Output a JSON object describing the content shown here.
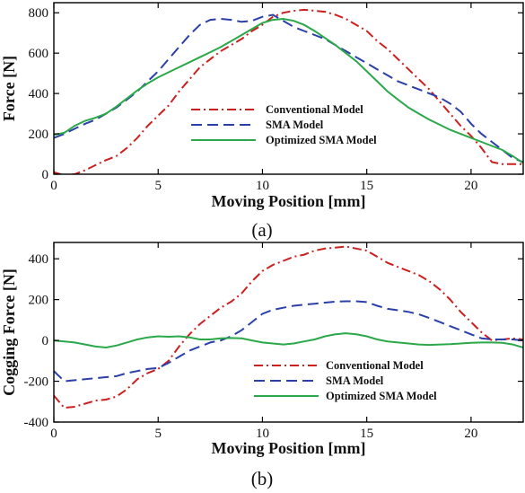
{
  "chart_data": [
    {
      "type": "line",
      "panel_caption": "(a)",
      "xlabel": "Moving Position [mm]",
      "ylabel": "Force [N]",
      "xlim": [
        0,
        22.5
      ],
      "ylim": [
        0,
        850
      ],
      "x_ticks": [
        0,
        5,
        10,
        15,
        20
      ],
      "y_ticks": [
        0,
        200,
        400,
        600,
        800
      ],
      "grid": false,
      "legend_position": "center-right",
      "series": [
        {
          "name": "Conventional Model",
          "color": "#cc1f1f",
          "dash": "dashdot",
          "x": [
            0,
            0.5,
            1,
            1.5,
            2,
            2.5,
            3,
            3.5,
            4,
            4.5,
            5,
            5.5,
            6,
            6.5,
            7,
            7.5,
            8,
            8.5,
            9,
            9.5,
            10,
            10.5,
            11,
            11.5,
            12,
            12.5,
            13,
            13.5,
            14,
            14.5,
            15,
            15.5,
            16,
            16.5,
            17,
            17.5,
            18,
            18.5,
            19,
            19.5,
            20,
            20.5,
            21,
            21.5,
            22,
            22.5
          ],
          "y": [
            10,
            -5,
            0,
            20,
            45,
            70,
            90,
            130,
            180,
            240,
            290,
            340,
            410,
            470,
            530,
            570,
            610,
            640,
            670,
            710,
            740,
            780,
            800,
            810,
            815,
            810,
            805,
            790,
            770,
            740,
            710,
            660,
            620,
            570,
            520,
            470,
            420,
            360,
            300,
            240,
            190,
            130,
            60,
            50,
            50,
            50
          ]
        },
        {
          "name": "SMA Model",
          "color": "#2a3fa8",
          "dash": "dashed",
          "x": [
            0,
            0.5,
            1,
            1.5,
            2,
            2.5,
            3,
            3.5,
            4,
            4.5,
            5,
            5.5,
            6,
            6.5,
            7,
            7.5,
            8,
            8.5,
            9,
            9.5,
            10,
            10.5,
            11,
            11.5,
            12,
            12.5,
            13,
            13.5,
            14,
            14.5,
            15,
            15.5,
            16,
            16.5,
            17,
            17.5,
            18,
            18.5,
            19,
            19.5,
            20,
            20.5,
            21,
            21.5,
            22,
            22.5
          ],
          "y": [
            180,
            200,
            225,
            250,
            270,
            300,
            330,
            370,
            410,
            460,
            510,
            570,
            630,
            690,
            740,
            765,
            770,
            765,
            755,
            760,
            780,
            790,
            760,
            730,
            710,
            690,
            670,
            640,
            610,
            580,
            550,
            520,
            490,
            460,
            440,
            420,
            400,
            380,
            350,
            310,
            250,
            200,
            160,
            120,
            80,
            60
          ]
        },
        {
          "name": "Optimized SMA Model",
          "color": "#2aa84a",
          "dash": "solid",
          "x": [
            0,
            0.5,
            1,
            1.5,
            2,
            2.5,
            3,
            3.5,
            4,
            4.5,
            5,
            5.5,
            6,
            6.5,
            7,
            7.5,
            8,
            8.5,
            9,
            9.5,
            10,
            10.5,
            11,
            11.5,
            12,
            12.5,
            13,
            13.5,
            14,
            14.5,
            15,
            15.5,
            16,
            16.5,
            17,
            17.5,
            18,
            18.5,
            19,
            19.5,
            20,
            20.5,
            21,
            21.5,
            22,
            22.5
          ],
          "y": [
            195,
            205,
            240,
            265,
            280,
            300,
            335,
            375,
            415,
            450,
            480,
            505,
            530,
            555,
            580,
            605,
            630,
            660,
            690,
            720,
            750,
            765,
            770,
            760,
            740,
            710,
            675,
            640,
            600,
            560,
            510,
            460,
            410,
            370,
            330,
            300,
            270,
            245,
            220,
            200,
            180,
            160,
            140,
            120,
            90,
            55
          ]
        }
      ]
    },
    {
      "type": "line",
      "panel_caption": "(b)",
      "xlabel": "Moving Position [mm]",
      "ylabel": "Cogging Force [N]",
      "xlim": [
        0,
        22.5
      ],
      "ylim": [
        -400,
        480
      ],
      "x_ticks": [
        0,
        5,
        10,
        15,
        20
      ],
      "y_ticks": [
        -400,
        -200,
        0,
        200,
        400
      ],
      "grid": false,
      "legend_position": "bottom-right",
      "series": [
        {
          "name": "Conventional Model",
          "color": "#cc1f1f",
          "dash": "dashdot",
          "x": [
            0,
            0.5,
            1,
            1.5,
            2,
            2.5,
            3,
            3.5,
            4,
            4.5,
            5,
            5.5,
            6,
            6.5,
            7,
            7.5,
            8,
            8.5,
            9,
            9.5,
            10,
            10.5,
            11,
            11.5,
            12,
            12.5,
            13,
            13.5,
            14,
            14.5,
            15,
            15.5,
            16,
            16.5,
            17,
            17.5,
            18,
            18.5,
            19,
            19.5,
            20,
            20.5,
            21,
            21.5,
            22,
            22.5
          ],
          "y": [
            -270,
            -330,
            -325,
            -310,
            -295,
            -290,
            -275,
            -240,
            -190,
            -160,
            -140,
            -100,
            -30,
            30,
            80,
            120,
            160,
            190,
            230,
            290,
            340,
            370,
            390,
            410,
            420,
            440,
            450,
            455,
            460,
            450,
            440,
            410,
            380,
            360,
            340,
            320,
            290,
            250,
            200,
            140,
            90,
            40,
            0,
            5,
            10,
            5
          ]
        },
        {
          "name": "SMA Model",
          "color": "#2a3fa8",
          "dash": "dashed",
          "x": [
            0,
            0.5,
            1,
            1.5,
            2,
            2.5,
            3,
            3.5,
            4,
            4.5,
            5,
            5.5,
            6,
            6.5,
            7,
            7.5,
            8,
            8.5,
            9,
            9.5,
            10,
            10.5,
            11,
            11.5,
            12,
            12.5,
            13,
            13.5,
            14,
            14.5,
            15,
            15.5,
            16,
            16.5,
            17,
            17.5,
            18,
            18.5,
            19,
            19.5,
            20,
            20.5,
            21,
            21.5,
            22,
            22.5
          ],
          "y": [
            -150,
            -200,
            -195,
            -190,
            -185,
            -180,
            -175,
            -160,
            -150,
            -140,
            -135,
            -110,
            -80,
            -50,
            -30,
            -10,
            0,
            20,
            50,
            90,
            130,
            150,
            160,
            170,
            175,
            180,
            185,
            190,
            192,
            192,
            188,
            170,
            155,
            148,
            140,
            128,
            110,
            90,
            70,
            50,
            30,
            10,
            5,
            5,
            5,
            0
          ]
        },
        {
          "name": "Optimized SMA Model",
          "color": "#2aa84a",
          "dash": "solid",
          "x": [
            0,
            0.5,
            1,
            1.5,
            2,
            2.5,
            3,
            3.5,
            4,
            4.5,
            5,
            5.5,
            6,
            6.5,
            7,
            7.5,
            8,
            8.5,
            9,
            9.5,
            10,
            10.5,
            11,
            11.5,
            12,
            12.5,
            13,
            13.5,
            14,
            14.5,
            15,
            15.5,
            16,
            16.5,
            17,
            17.5,
            18,
            18.5,
            19,
            19.5,
            20,
            20.5,
            21,
            21.5,
            22,
            22.5
          ],
          "y": [
            0,
            -5,
            -10,
            -20,
            -30,
            -35,
            -25,
            -10,
            5,
            15,
            20,
            18,
            20,
            15,
            5,
            5,
            10,
            12,
            10,
            0,
            -10,
            -15,
            -20,
            -15,
            -5,
            5,
            20,
            30,
            35,
            30,
            20,
            5,
            -5,
            -10,
            -15,
            -20,
            -22,
            -20,
            -18,
            -15,
            -12,
            -10,
            -10,
            -12,
            -20,
            -35
          ]
        }
      ]
    }
  ]
}
